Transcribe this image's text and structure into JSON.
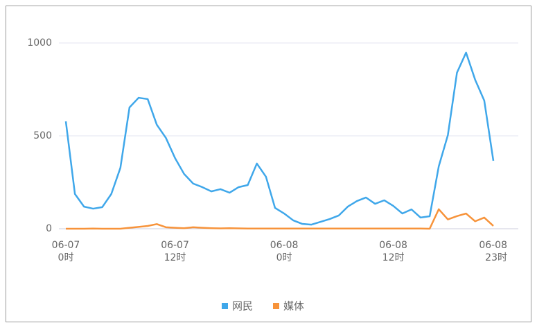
{
  "chart_data": {
    "type": "line",
    "categories": [
      "06-07 0时",
      null,
      null,
      null,
      null,
      null,
      null,
      null,
      null,
      null,
      null,
      null,
      "06-07 12时",
      null,
      null,
      null,
      null,
      null,
      null,
      null,
      null,
      null,
      null,
      null,
      "06-08 0时",
      null,
      null,
      null,
      null,
      null,
      null,
      null,
      null,
      null,
      null,
      null,
      "06-08 12时",
      null,
      null,
      null,
      null,
      null,
      null,
      null,
      null,
      null,
      null,
      "06-08 23时"
    ],
    "series": [
      {
        "name": "网民",
        "color": "#3fa7ea",
        "values": [
          578,
          187,
          119,
          108,
          116,
          187,
          328,
          653,
          705,
          698,
          560,
          489,
          381,
          295,
          243,
          224,
          201,
          213,
          194,
          224,
          235,
          351,
          280,
          112,
          82,
          45,
          26,
          22,
          37,
          52,
          71,
          119,
          149,
          168,
          134,
          153,
          123,
          82,
          104,
          60,
          67,
          336,
          504,
          840,
          948,
          802,
          690,
          366
        ]
      },
      {
        "name": "媒体",
        "color": "#f7933a",
        "values": [
          0,
          0,
          0,
          1,
          0,
          0,
          0,
          5,
          10,
          15,
          25,
          8,
          5,
          3,
          8,
          5,
          3,
          2,
          3,
          2,
          1,
          1,
          1,
          1,
          1,
          1,
          1,
          1,
          1,
          1,
          1,
          1,
          1,
          1,
          1,
          1,
          1,
          1,
          1,
          1,
          0,
          105,
          50,
          68,
          82,
          40,
          60,
          15
        ]
      }
    ],
    "ylim": [
      0,
      1000
    ],
    "yticks": [
      0,
      500,
      1000
    ],
    "grid": true,
    "legend": "bottom"
  }
}
